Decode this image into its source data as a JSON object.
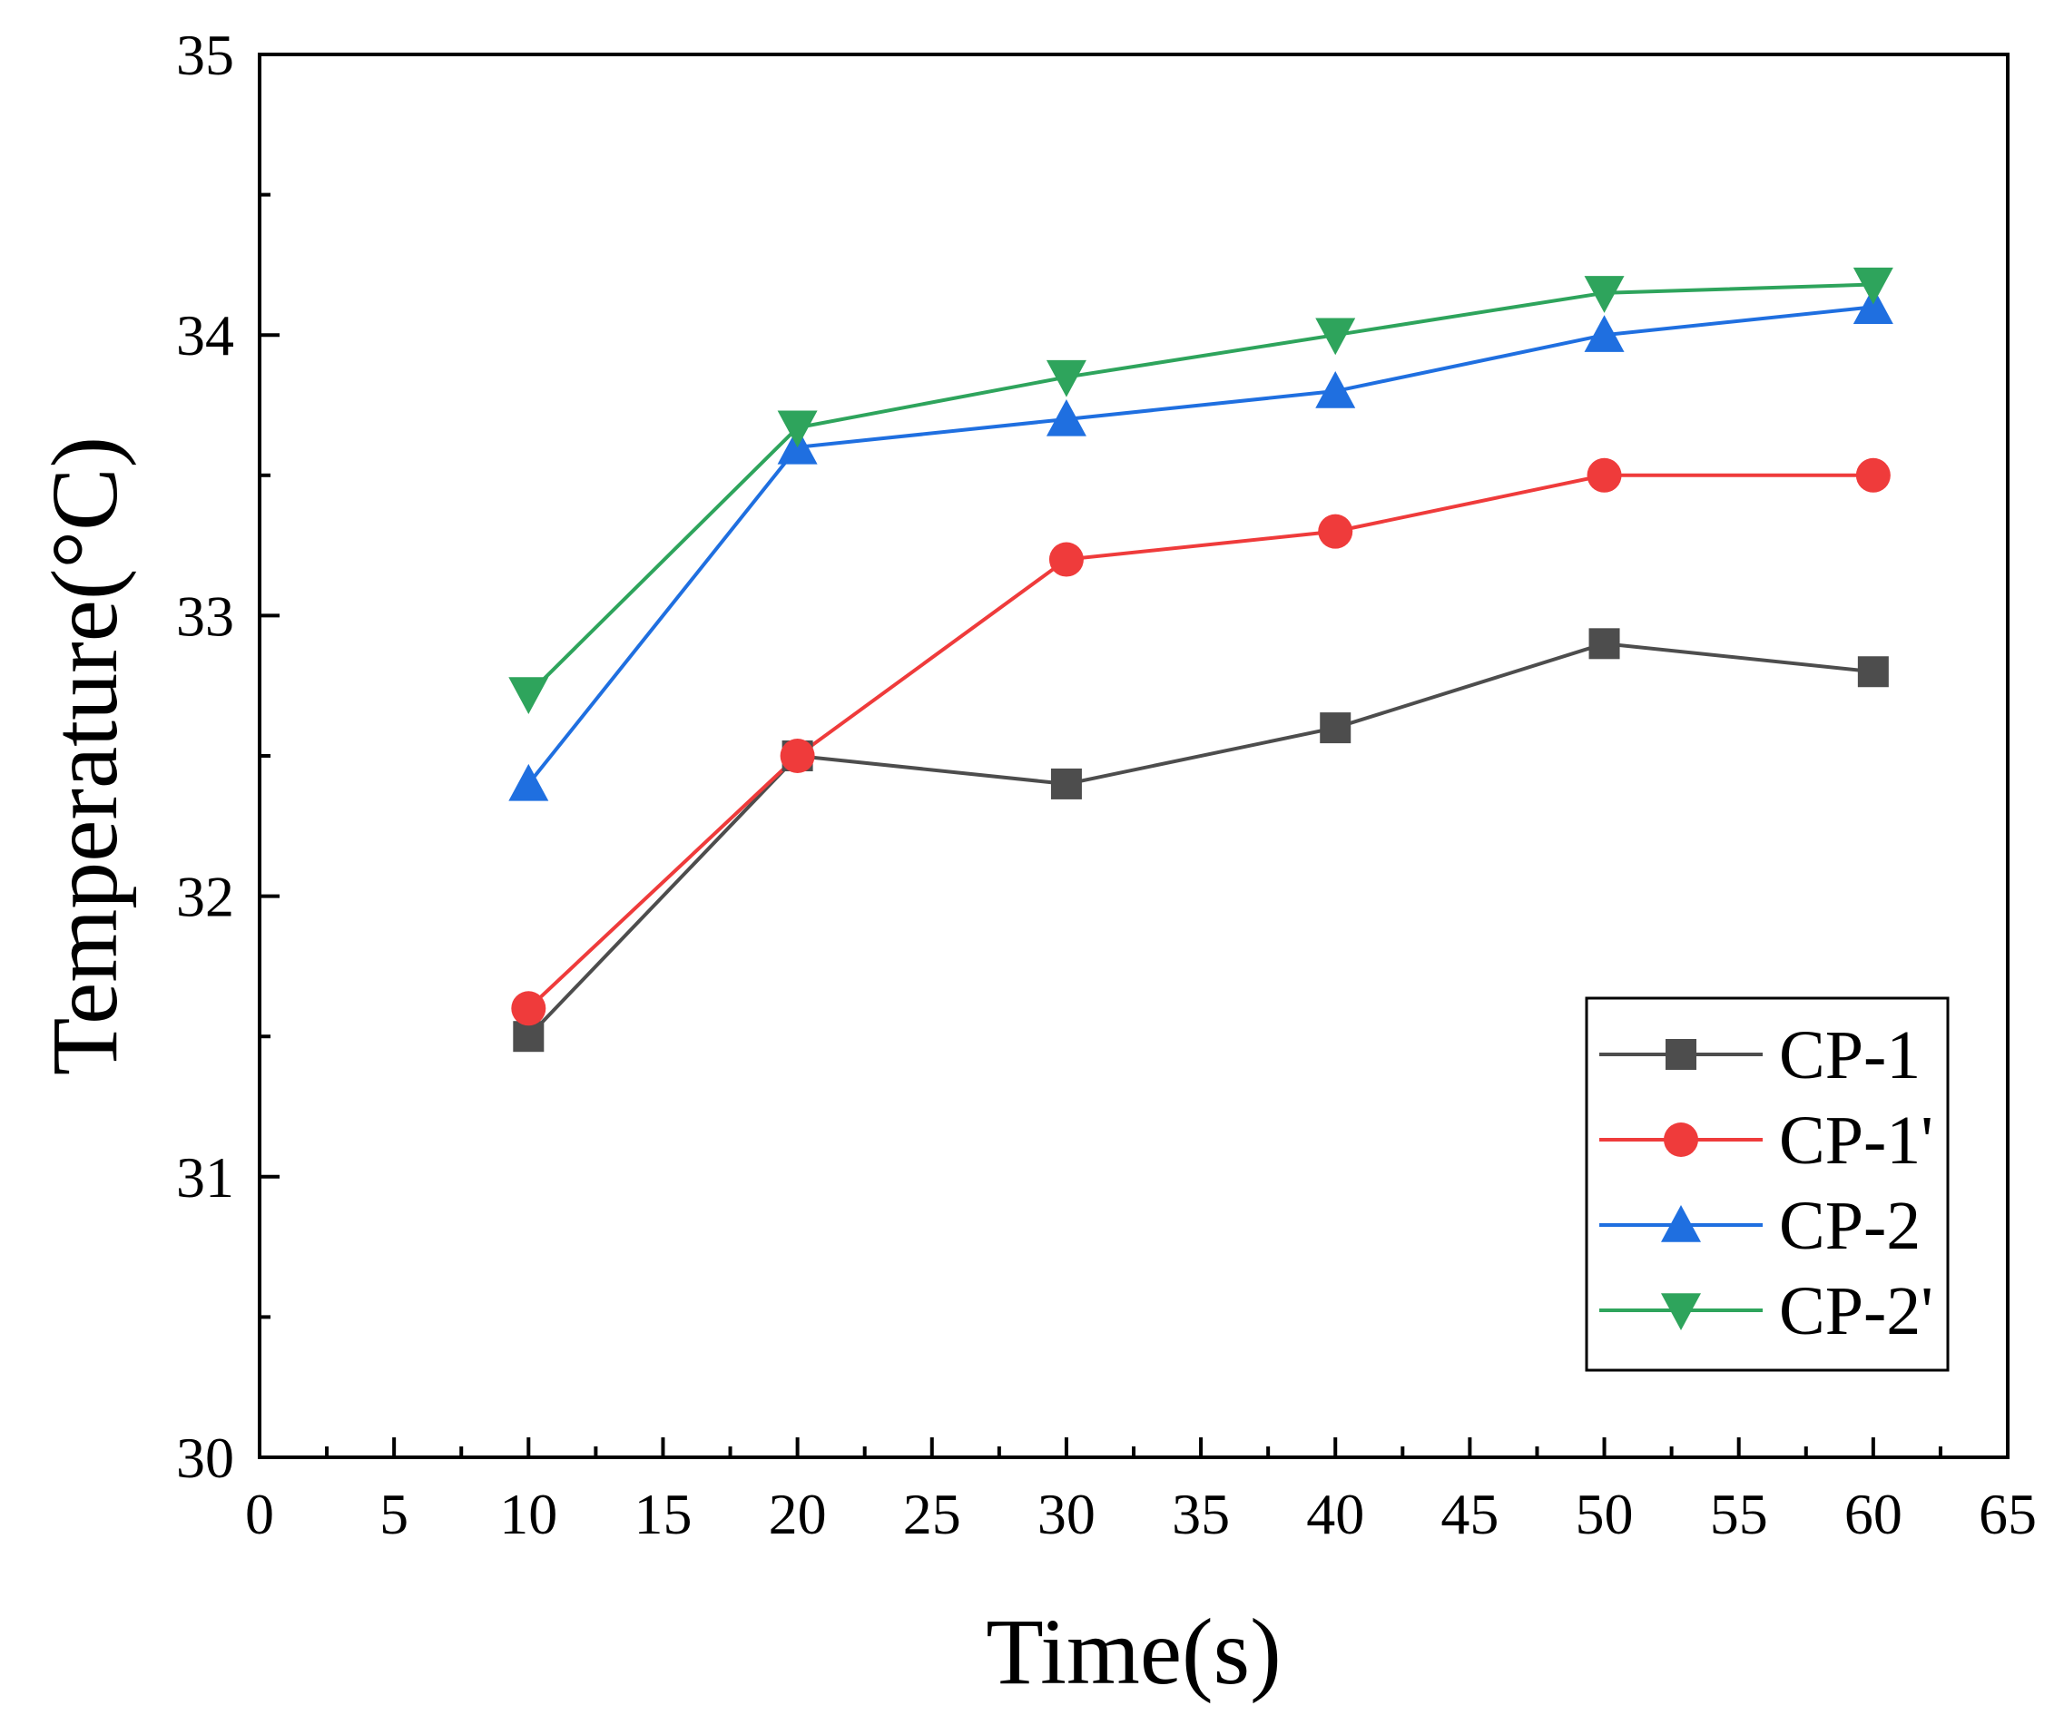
{
  "chart_data": {
    "type": "line",
    "title": "",
    "xlabel": "Time(s)",
    "ylabel": "Temperature(°C)",
    "xlim": [
      0,
      65
    ],
    "ylim": [
      30,
      35
    ],
    "x_ticks": [
      0,
      5,
      10,
      15,
      20,
      25,
      30,
      35,
      40,
      45,
      50,
      55,
      60,
      65
    ],
    "y_ticks": [
      30,
      31,
      32,
      33,
      34,
      35
    ],
    "grid": false,
    "legend_position": "bottom-right",
    "x": [
      10,
      20,
      30,
      40,
      50,
      60
    ],
    "series": [
      {
        "name": "CP-1",
        "color": "#4d4d4d",
        "marker": "square",
        "values": [
          31.5,
          32.5,
          32.4,
          32.6,
          32.9,
          32.8
        ]
      },
      {
        "name": "CP-1'",
        "color": "#ef3b3b",
        "marker": "circle",
        "values": [
          31.6,
          32.5,
          33.2,
          33.3,
          33.5,
          33.5
        ]
      },
      {
        "name": "CP-2",
        "color": "#1f6fe0",
        "marker": "triangle-up",
        "values": [
          32.4,
          33.6,
          33.7,
          33.8,
          34.0,
          34.1
        ]
      },
      {
        "name": "CP-2'",
        "color": "#2ea45c",
        "marker": "triangle-down",
        "values": [
          32.72,
          33.67,
          33.85,
          34.0,
          34.15,
          34.18
        ]
      }
    ]
  }
}
